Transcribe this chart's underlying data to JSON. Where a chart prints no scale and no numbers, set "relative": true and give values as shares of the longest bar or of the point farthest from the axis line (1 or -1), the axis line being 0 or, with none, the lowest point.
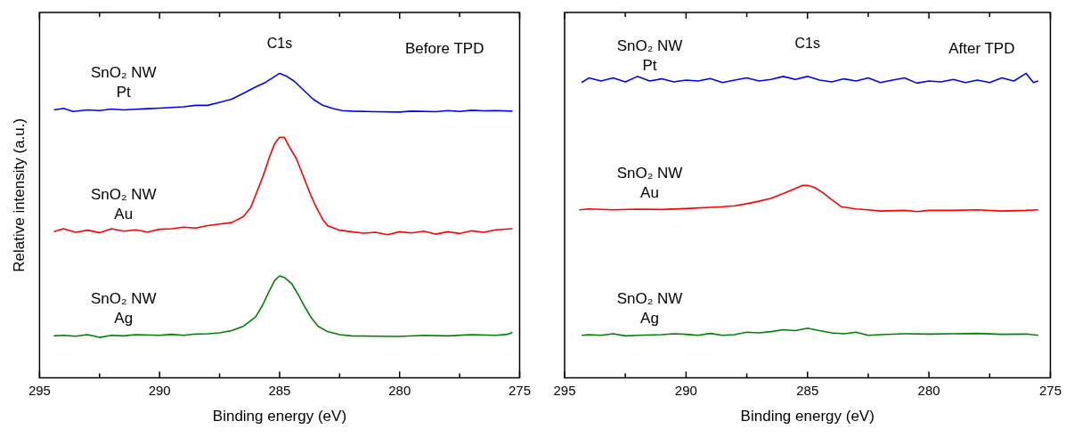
{
  "chart_data": [
    {
      "type": "line",
      "relative": true,
      "xlabel": "Binding energy (eV)",
      "ylabel": "Relative intensity (a.u.)",
      "xlim": [
        295,
        275
      ],
      "xticks": [
        295,
        {
          "value": 292.5,
          "label": null
        },
        290,
        {
          "value": 287.5,
          "label": null
        },
        285,
        {
          "value": 282.5,
          "label": null
        },
        280,
        {
          "value": 277.5,
          "label": null
        },
        275
      ],
      "tick_labels": "x",
      "annotations": [
        {
          "text": "C1s",
          "x": 285
        },
        "Before TPD"
      ],
      "series": [
        {
          "name": "SnO₂ NW\nPt",
          "color": "#0000ff",
          "x": [
            294.4,
            294,
            293.6,
            293,
            292.5,
            292,
            291.5,
            291,
            290.5,
            290,
            289.5,
            289,
            288.5,
            288,
            287.5,
            287,
            286.5,
            286,
            285.6,
            285.3,
            285,
            284.7,
            284.4,
            284,
            283.6,
            283.2,
            282.8,
            282.4,
            282,
            281,
            280,
            279.5,
            278.5,
            278,
            277.5,
            277,
            276.5,
            276,
            275.3
          ],
          "values": [
            0.88,
            0.885,
            0.875,
            0.88,
            0.878,
            0.883,
            0.88,
            0.882,
            0.884,
            0.886,
            0.888,
            0.89,
            0.895,
            0.895,
            0.905,
            0.915,
            0.935,
            0.955,
            0.97,
            0.985,
            1.0,
            0.99,
            0.975,
            0.945,
            0.915,
            0.895,
            0.885,
            0.878,
            0.876,
            0.874,
            0.873,
            0.876,
            0.874,
            0.878,
            0.875,
            0.879,
            0.877,
            0.878,
            0.876
          ]
        },
        {
          "name": "SnO₂ NW\nAu",
          "color": "#ff0000",
          "x": [
            294.4,
            294,
            293.5,
            293,
            292.5,
            292,
            291.5,
            291,
            290.5,
            290,
            289.5,
            289,
            288.5,
            288,
            287.5,
            287,
            286.5,
            286.2,
            286,
            285.7,
            285.4,
            285.2,
            285,
            284.8,
            284.6,
            284.3,
            284,
            283.7,
            283.5,
            283.2,
            283,
            282.5,
            282,
            281.5,
            281,
            280.5,
            280,
            279.5,
            279,
            278.5,
            278,
            277.5,
            277,
            276.5,
            276,
            275.3
          ],
          "values": [
            0.48,
            0.49,
            0.478,
            0.485,
            0.477,
            0.49,
            0.482,
            0.486,
            0.479,
            0.488,
            0.49,
            0.495,
            0.492,
            0.5,
            0.505,
            0.51,
            0.53,
            0.56,
            0.6,
            0.66,
            0.73,
            0.77,
            0.79,
            0.79,
            0.76,
            0.72,
            0.66,
            0.6,
            0.565,
            0.52,
            0.5,
            0.485,
            0.48,
            0.475,
            0.478,
            0.47,
            0.48,
            0.476,
            0.482,
            0.472,
            0.48,
            0.474,
            0.483,
            0.478,
            0.486,
            0.49
          ]
        },
        {
          "name": "SnO₂ NW\nAg",
          "color": "#008000",
          "x": [
            294.4,
            294,
            293.5,
            293,
            292.5,
            292,
            291.5,
            291,
            290,
            289.5,
            289,
            288.5,
            288,
            287.5,
            287,
            286.5,
            286,
            285.7,
            285.4,
            285.2,
            285,
            284.8,
            284.5,
            284.2,
            284,
            283.7,
            283.4,
            283,
            282.5,
            282,
            281,
            280,
            279,
            278,
            277,
            276,
            275.5,
            275.3
          ],
          "values": [
            0.138,
            0.14,
            0.137,
            0.142,
            0.133,
            0.14,
            0.138,
            0.142,
            0.14,
            0.143,
            0.14,
            0.144,
            0.145,
            0.148,
            0.155,
            0.17,
            0.2,
            0.24,
            0.29,
            0.32,
            0.335,
            0.33,
            0.31,
            0.27,
            0.24,
            0.2,
            0.17,
            0.152,
            0.142,
            0.138,
            0.137,
            0.136,
            0.14,
            0.138,
            0.142,
            0.14,
            0.143,
            0.15
          ]
        }
      ]
    },
    {
      "type": "line",
      "relative": true,
      "xlabel": "Binding energy (eV)",
      "xlim": [
        295,
        275
      ],
      "xticks": [
        295,
        {
          "value": 292.5,
          "label": null
        },
        290,
        {
          "value": 287.5,
          "label": null
        },
        285,
        {
          "value": 282.5,
          "label": null
        },
        280,
        {
          "value": 277.5,
          "label": null
        },
        275
      ],
      "tick_labels": "x",
      "annotations": [
        {
          "text": "C1s",
          "x": 285
        },
        "After TPD"
      ],
      "series": [
        {
          "name": "SnO₂ NW\nPt",
          "color": "#0000ff",
          "x": [
            294.3,
            294,
            293.5,
            293,
            292.5,
            292,
            291.5,
            291,
            290.5,
            290,
            289.5,
            289,
            288.5,
            288,
            287.5,
            287,
            286.5,
            286,
            285.5,
            285,
            284.5,
            284,
            283.5,
            283,
            282.5,
            282,
            281.5,
            281,
            280.5,
            280,
            279.5,
            279,
            278.5,
            278,
            277.5,
            277,
            276.5,
            276,
            275.7,
            275.5
          ],
          "values": [
            0.97,
            0.985,
            0.975,
            0.985,
            0.972,
            0.99,
            0.975,
            0.982,
            0.972,
            0.978,
            0.975,
            0.983,
            0.97,
            0.978,
            0.985,
            0.975,
            0.98,
            0.99,
            0.98,
            0.99,
            0.978,
            0.972,
            0.982,
            0.975,
            0.985,
            0.97,
            0.978,
            0.985,
            0.968,
            0.975,
            0.972,
            0.98,
            0.97,
            0.978,
            0.97,
            0.985,
            0.975,
            1.0,
            0.97,
            0.975
          ]
        },
        {
          "name": "SnO₂ NW\nAu",
          "color": "#ff0000",
          "x": [
            294.4,
            294,
            293,
            292,
            291,
            290,
            289.5,
            289,
            288.5,
            288,
            287.5,
            287,
            286.5,
            286,
            285.5,
            285.2,
            285,
            284.7,
            284.4,
            284,
            283.6,
            283,
            282.5,
            282,
            281,
            280.5,
            280,
            279,
            278,
            277,
            276,
            275.5
          ],
          "values": [
            0.552,
            0.555,
            0.552,
            0.554,
            0.553,
            0.556,
            0.558,
            0.56,
            0.562,
            0.565,
            0.572,
            0.58,
            0.59,
            0.605,
            0.622,
            0.632,
            0.632,
            0.625,
            0.61,
            0.585,
            0.562,
            0.555,
            0.552,
            0.548,
            0.55,
            0.546,
            0.55,
            0.55,
            0.552,
            0.548,
            0.55,
            0.552
          ]
        },
        {
          "name": "SnO₂ NW\nAg",
          "color": "#008000",
          "x": [
            294.3,
            294,
            293.5,
            293,
            292.5,
            292,
            291,
            290.5,
            290,
            289.5,
            289,
            288.5,
            288,
            287.5,
            287,
            286.5,
            286,
            285.5,
            285,
            284.5,
            284,
            283.5,
            283,
            282.5,
            282,
            281,
            280,
            279,
            278,
            277,
            276,
            275.5
          ],
          "values": [
            0.14,
            0.142,
            0.14,
            0.145,
            0.138,
            0.14,
            0.142,
            0.145,
            0.143,
            0.14,
            0.146,
            0.14,
            0.142,
            0.15,
            0.148,
            0.152,
            0.158,
            0.155,
            0.163,
            0.155,
            0.148,
            0.145,
            0.15,
            0.14,
            0.142,
            0.145,
            0.144,
            0.145,
            0.146,
            0.143,
            0.144,
            0.14
          ]
        }
      ]
    }
  ]
}
